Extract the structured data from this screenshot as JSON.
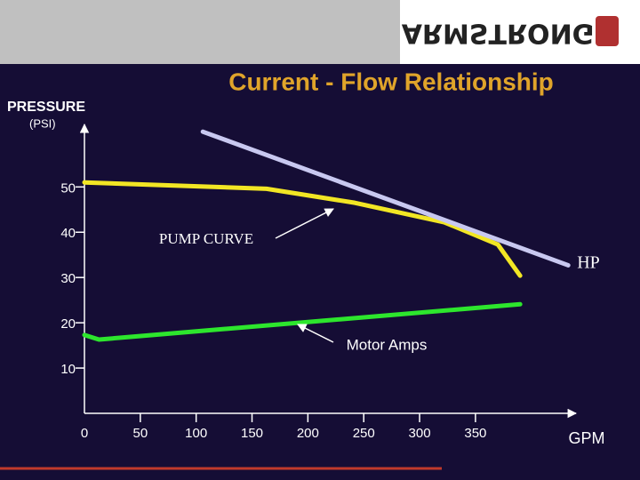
{
  "logo": "ARMSTRONG",
  "chart_data": {
    "type": "line",
    "title": "Current - Flow Relationship",
    "y_label": "PRESSURE",
    "y_unit": "(PSI)",
    "x_label": "GPM",
    "xlim": [
      0,
      440
    ],
    "ylim": [
      0,
      64
    ],
    "xticks": [
      0,
      50,
      100,
      150,
      200,
      250,
      300,
      350
    ],
    "yticks": [
      10,
      20,
      30,
      40,
      50
    ],
    "series": [
      {
        "name": "PUMP CURVE",
        "color": "#f2e624",
        "x": [
          0,
          163,
          242,
          322,
          370,
          390
        ],
        "values": [
          51,
          49.6,
          46.5,
          42.2,
          37.3,
          30.4
        ]
      },
      {
        "name": "Motor Amps",
        "color": "#2de62d",
        "x": [
          0,
          13,
          390
        ],
        "values": [
          17.3,
          16.3,
          24.1
        ]
      },
      {
        "name": "HP",
        "color": "#c8c8f0",
        "x": [
          106,
          433
        ],
        "values": [
          62.2,
          32.7
        ]
      }
    ]
  }
}
